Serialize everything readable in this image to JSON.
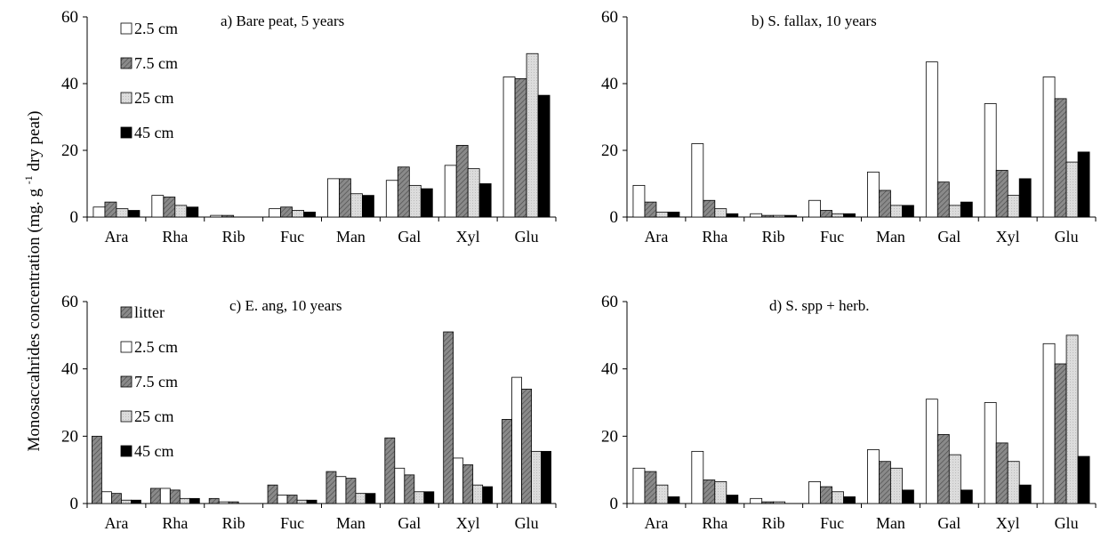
{
  "y_axis_label": {
    "main": "Monosaccahrides concentration (mg. g",
    "superscript": "-1",
    "unit": "dry peat"
  },
  "colors": {
    "litter": "#777777",
    "2.5 cm": "#ffffff",
    "7.5 cm": "#808080",
    "25 cm": "#d9d9d9",
    "45 cm": "#000000"
  },
  "chart_data": [
    {
      "type": "bar",
      "title": "a) Bare peat, 5 years",
      "categories": [
        "Ara",
        "Rha",
        "Rib",
        "Fuc",
        "Man",
        "Gal",
        "Xyl",
        "Glu"
      ],
      "ylim": [
        0,
        60
      ],
      "yticks": [
        0,
        20,
        40,
        60
      ],
      "legend": true,
      "series": [
        {
          "name": "2.5 cm",
          "values": [
            3,
            6.5,
            0.5,
            2.5,
            11.5,
            11,
            15.5,
            42
          ]
        },
        {
          "name": "7.5 cm",
          "values": [
            4.5,
            6,
            0.5,
            3,
            11.5,
            15,
            21.5,
            41.5
          ]
        },
        {
          "name": "25 cm",
          "values": [
            2.5,
            3.5,
            0,
            2,
            7,
            9.5,
            14.5,
            49
          ]
        },
        {
          "name": "45 cm",
          "values": [
            2,
            3,
            0,
            1.5,
            6.5,
            8.5,
            10,
            36.5
          ]
        }
      ]
    },
    {
      "type": "bar",
      "title": "b) S. fallax, 10 years",
      "categories": [
        "Ara",
        "Rha",
        "Rib",
        "Fuc",
        "Man",
        "Gal",
        "Xyl",
        "Glu"
      ],
      "ylim": [
        0,
        60
      ],
      "yticks": [
        0,
        20,
        40,
        60
      ],
      "legend": false,
      "series": [
        {
          "name": "2.5 cm",
          "values": [
            9.5,
            22,
            1,
            5,
            13.5,
            46.5,
            34,
            42
          ]
        },
        {
          "name": "7.5 cm",
          "values": [
            4.5,
            5,
            0.5,
            2,
            8,
            10.5,
            14,
            35.5
          ]
        },
        {
          "name": "25 cm",
          "values": [
            1.5,
            2.5,
            0.5,
            1,
            3.5,
            3.5,
            6.5,
            16.5
          ]
        },
        {
          "name": "45 cm",
          "values": [
            1.5,
            1,
            0.5,
            1,
            3.5,
            4.5,
            11.5,
            19.5
          ]
        }
      ]
    },
    {
      "type": "bar",
      "title": "c) E. ang, 10 years",
      "categories": [
        "Ara",
        "Rha",
        "Rib",
        "Fuc",
        "Man",
        "Gal",
        "Xyl",
        "Glu"
      ],
      "ylim": [
        0,
        60
      ],
      "yticks": [
        0,
        20,
        40,
        60
      ],
      "legend": true,
      "series": [
        {
          "name": "litter",
          "values": [
            20,
            4.5,
            1.5,
            5.5,
            9.5,
            19.5,
            51,
            25
          ]
        },
        {
          "name": "2.5 cm",
          "values": [
            3.5,
            4.5,
            0.5,
            2.5,
            8,
            10.5,
            13.5,
            37.5
          ]
        },
        {
          "name": "7.5 cm",
          "values": [
            3,
            4,
            0.5,
            2.5,
            7.5,
            8.5,
            11.5,
            34
          ]
        },
        {
          "name": "25 cm",
          "values": [
            1,
            1.5,
            0,
            1,
            3,
            3.5,
            5.5,
            15.5
          ]
        },
        {
          "name": "45 cm",
          "values": [
            1,
            1.5,
            0,
            1,
            3,
            3.5,
            5,
            15.5
          ]
        }
      ]
    },
    {
      "type": "bar",
      "title": "d) S. spp + herb.",
      "categories": [
        "Ara",
        "Rha",
        "Rib",
        "Fuc",
        "Man",
        "Gal",
        "Xyl",
        "Glu"
      ],
      "ylim": [
        0,
        60
      ],
      "yticks": [
        0,
        20,
        40,
        60
      ],
      "legend": false,
      "series": [
        {
          "name": "2.5 cm",
          "values": [
            10.5,
            15.5,
            1.5,
            6.5,
            16,
            31,
            30,
            47.5
          ]
        },
        {
          "name": "7.5 cm",
          "values": [
            9.5,
            7,
            0.5,
            5,
            12.5,
            20.5,
            18,
            41.5
          ]
        },
        {
          "name": "25 cm",
          "values": [
            5.5,
            6.5,
            0.5,
            3.5,
            10.5,
            14.5,
            12.5,
            50
          ]
        },
        {
          "name": "45 cm",
          "values": [
            2,
            2.5,
            0,
            2,
            4,
            4,
            5.5,
            14
          ]
        }
      ]
    }
  ]
}
